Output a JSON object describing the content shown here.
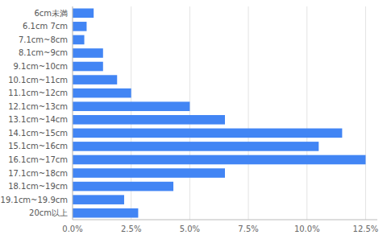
{
  "chart_data": {
    "type": "bar",
    "orientation": "horizontal",
    "categories": [
      "6cm未満",
      "6.1cm 7cm",
      "7.1cm~8cm",
      "8.1cm~9cm",
      "9.1cm~10cm",
      "10.1cm~11cm",
      "11.1cm~12cm",
      "12.1cm~13cm",
      "13.1cm~14cm",
      "14.1cm~15cm",
      "15.1cm~16cm",
      "16.1cm~17cm",
      "17.1cm~18cm",
      "18.1cm~19cm",
      "19.1cm~19.9cm",
      "20cm以上"
    ],
    "values": [
      0.009,
      0.006,
      0.005,
      0.013,
      0.013,
      0.019,
      0.025,
      0.05,
      0.065,
      0.115,
      0.105,
      0.125,
      0.065,
      0.043,
      0.022,
      0.028
    ],
    "color": "#4285F4",
    "xlim": [
      0,
      0.13
    ],
    "xticks": [
      {
        "value": 0.0,
        "label": "0.0%"
      },
      {
        "value": 0.025,
        "label": "2.5%"
      },
      {
        "value": 0.05,
        "label": "5.0%"
      },
      {
        "value": 0.075,
        "label": "7.5%"
      },
      {
        "value": 0.1,
        "label": "10.0%"
      },
      {
        "value": 0.125,
        "label": "12.5%"
      }
    ],
    "grid": true
  }
}
